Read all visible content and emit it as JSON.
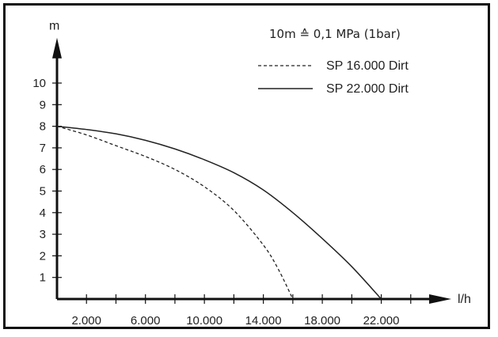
{
  "chart_data": {
    "type": "line",
    "title": "",
    "annotation": "10m ≙ 0,1 MPa (1bar)",
    "xlabel": "l/h",
    "ylabel": "m",
    "xlim": [
      0,
      26000
    ],
    "ylim": [
      0,
      11
    ],
    "x_ticks": [
      2000,
      4000,
      6000,
      8000,
      10000,
      12000,
      14000,
      16000,
      18000,
      20000,
      22000,
      24000
    ],
    "x_tick_labels": [
      {
        "value": 2000,
        "label": "2.000"
      },
      {
        "value": 6000,
        "label": "6.000"
      },
      {
        "value": 10000,
        "label": "10.000"
      },
      {
        "value": 14000,
        "label": "14.000"
      },
      {
        "value": 18000,
        "label": "18.000"
      },
      {
        "value": 22000,
        "label": "22.000"
      }
    ],
    "y_ticks": [
      1,
      2,
      3,
      4,
      5,
      6,
      7,
      8,
      9,
      10
    ],
    "y_tick_labels": [
      "1",
      "2",
      "3",
      "4",
      "5",
      "6",
      "7",
      "8",
      "9",
      "10"
    ],
    "grid": false,
    "legend_position": "top-right",
    "series": [
      {
        "name": "SP 16.000 Dirt",
        "line_style": "dashed",
        "x": [
          0,
          2000,
          4000,
          6000,
          8000,
          10000,
          12000,
          14000,
          15000,
          16000
        ],
        "y": [
          8.0,
          7.6,
          7.1,
          6.6,
          6.0,
          5.2,
          4.1,
          2.5,
          1.4,
          0.0
        ]
      },
      {
        "name": "SP 22.000 Dirt",
        "line_style": "solid",
        "x": [
          0,
          2000,
          4000,
          6000,
          8000,
          10000,
          12000,
          14000,
          16000,
          18000,
          20000,
          22000
        ],
        "y": [
          8.0,
          7.85,
          7.65,
          7.35,
          6.95,
          6.45,
          5.85,
          5.05,
          4.0,
          2.8,
          1.5,
          0.0
        ]
      }
    ],
    "colors": {
      "line": "#222222",
      "axis": "#111111",
      "frame": "#111111"
    }
  }
}
